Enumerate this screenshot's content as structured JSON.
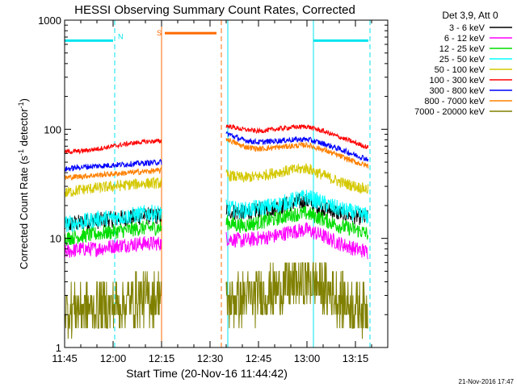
{
  "chart_data": {
    "type": "line",
    "title": "HESSI Observing Summary Count Rates, Corrected",
    "xlabel": "Start Time (20-Nov-16 11:44:42)",
    "ylabel_main": "Corrected Count Rate (s",
    "ylabel_sup1": "-1",
    "ylabel_mid": " detector",
    "ylabel_sup2": "-1",
    "ylabel_end": ")",
    "y_scale": "log",
    "xlim_minutes": [
      0,
      100
    ],
    "ylim": [
      1,
      1000
    ],
    "x_ticks": [
      {
        "label": "11:45",
        "minute": 0
      },
      {
        "label": "12:00",
        "minute": 15
      },
      {
        "label": "12:15",
        "minute": 30
      },
      {
        "label": "12:30",
        "minute": 45
      },
      {
        "label": "12:45",
        "minute": 60
      },
      {
        "label": "13:00",
        "minute": 75
      },
      {
        "label": "13:15",
        "minute": 90
      }
    ],
    "y_ticks": [
      {
        "label": "1",
        "value": 1
      },
      {
        "label": "10",
        "value": 10
      },
      {
        "label": "100",
        "value": 100
      },
      {
        "label": "1000",
        "value": 1000
      }
    ],
    "legend_title": "Det 3,9, Att 0",
    "legend_position": "right",
    "data_gap_minutes": [
      30,
      50
    ],
    "series": [
      {
        "name": "3 - 6 keV",
        "color": "#000000",
        "points": [
          [
            0,
            13
          ],
          [
            5,
            14
          ],
          [
            10,
            14.5
          ],
          [
            15,
            15
          ],
          [
            20,
            15.5
          ],
          [
            25,
            16
          ],
          [
            30,
            16
          ],
          [
            50,
            18
          ],
          [
            55,
            17
          ],
          [
            60,
            18
          ],
          [
            65,
            19
          ],
          [
            70,
            21
          ],
          [
            75,
            22
          ],
          [
            80,
            19
          ],
          [
            85,
            17
          ],
          [
            90,
            16
          ],
          [
            94,
            15.5
          ]
        ]
      },
      {
        "name": "6 - 12 keV",
        "color": "#ff00ff",
        "points": [
          [
            0,
            7.5
          ],
          [
            5,
            8
          ],
          [
            10,
            8
          ],
          [
            15,
            8.5
          ],
          [
            20,
            8.8
          ],
          [
            25,
            9
          ],
          [
            30,
            9
          ],
          [
            50,
            10
          ],
          [
            55,
            9.5
          ],
          [
            60,
            10
          ],
          [
            65,
            10.5
          ],
          [
            70,
            11.5
          ],
          [
            75,
            12
          ],
          [
            80,
            10.5
          ],
          [
            85,
            9
          ],
          [
            90,
            8
          ],
          [
            94,
            7.5
          ]
        ]
      },
      {
        "name": "12 - 25 keV",
        "color": "#00dd00",
        "points": [
          [
            0,
            10
          ],
          [
            5,
            10.5
          ],
          [
            10,
            11
          ],
          [
            15,
            11.5
          ],
          [
            20,
            12
          ],
          [
            25,
            12.5
          ],
          [
            30,
            12.5
          ],
          [
            50,
            14
          ],
          [
            55,
            13
          ],
          [
            60,
            14
          ],
          [
            65,
            15
          ],
          [
            70,
            16.5
          ],
          [
            75,
            17
          ],
          [
            80,
            15
          ],
          [
            85,
            13
          ],
          [
            90,
            12
          ],
          [
            94,
            11
          ]
        ]
      },
      {
        "name": "25 - 50 keV",
        "color": "#00ffff",
        "points": [
          [
            0,
            13.5
          ],
          [
            5,
            14
          ],
          [
            10,
            15
          ],
          [
            15,
            15.5
          ],
          [
            20,
            16
          ],
          [
            25,
            17
          ],
          [
            30,
            17
          ],
          [
            50,
            19
          ],
          [
            55,
            18
          ],
          [
            60,
            19
          ],
          [
            65,
            20
          ],
          [
            70,
            22
          ],
          [
            75,
            24
          ],
          [
            80,
            21
          ],
          [
            85,
            18.5
          ],
          [
            90,
            17
          ],
          [
            94,
            16
          ]
        ]
      },
      {
        "name": "50 - 100 keV",
        "color": "#d4c800",
        "points": [
          [
            0,
            26
          ],
          [
            5,
            28
          ],
          [
            10,
            29
          ],
          [
            15,
            30
          ],
          [
            20,
            31
          ],
          [
            25,
            32
          ],
          [
            30,
            32
          ],
          [
            50,
            38
          ],
          [
            55,
            36
          ],
          [
            60,
            37
          ],
          [
            65,
            40
          ],
          [
            70,
            42
          ],
          [
            75,
            44
          ],
          [
            80,
            38
          ],
          [
            85,
            33
          ],
          [
            90,
            30
          ],
          [
            94,
            28
          ]
        ]
      },
      {
        "name": "100 - 300 keV",
        "color": "#ff0000",
        "points": [
          [
            0,
            62
          ],
          [
            5,
            63
          ],
          [
            10,
            66
          ],
          [
            15,
            70
          ],
          [
            20,
            74
          ],
          [
            25,
            77
          ],
          [
            30,
            78
          ],
          [
            50,
            108
          ],
          [
            55,
            100
          ],
          [
            60,
            96
          ],
          [
            65,
            100
          ],
          [
            70,
            104
          ],
          [
            75,
            106
          ],
          [
            80,
            96
          ],
          [
            85,
            85
          ],
          [
            90,
            75
          ],
          [
            94,
            68
          ]
        ]
      },
      {
        "name": "300 - 800 keV",
        "color": "#0000ff",
        "points": [
          [
            0,
            43
          ],
          [
            5,
            45
          ],
          [
            10,
            46
          ],
          [
            15,
            47
          ],
          [
            20,
            48
          ],
          [
            25,
            49
          ],
          [
            30,
            50
          ],
          [
            50,
            92
          ],
          [
            55,
            80
          ],
          [
            60,
            76
          ],
          [
            65,
            78
          ],
          [
            70,
            80
          ],
          [
            75,
            81
          ],
          [
            80,
            74
          ],
          [
            85,
            66
          ],
          [
            90,
            58
          ],
          [
            94,
            53
          ]
        ]
      },
      {
        "name": "800 - 7000 keV",
        "color": "#ff8000",
        "points": [
          [
            0,
            36
          ],
          [
            5,
            37
          ],
          [
            10,
            38
          ],
          [
            15,
            39
          ],
          [
            20,
            40
          ],
          [
            25,
            41
          ],
          [
            30,
            42
          ],
          [
            50,
            82
          ],
          [
            55,
            70
          ],
          [
            60,
            66
          ],
          [
            65,
            68
          ],
          [
            70,
            70
          ],
          [
            75,
            72
          ],
          [
            80,
            65
          ],
          [
            85,
            57
          ],
          [
            90,
            50
          ],
          [
            94,
            46
          ]
        ]
      },
      {
        "name": "7000 - 20000 keV",
        "color": "#808000",
        "points": [
          [
            0,
            2.2
          ],
          [
            5,
            2.3
          ],
          [
            10,
            2.3
          ],
          [
            15,
            2.4
          ],
          [
            20,
            2.6
          ],
          [
            25,
            2.8
          ],
          [
            30,
            3
          ],
          [
            50,
            2.6
          ],
          [
            55,
            2.8
          ],
          [
            60,
            3
          ],
          [
            65,
            3.3
          ],
          [
            70,
            3.8
          ],
          [
            75,
            4.2
          ],
          [
            80,
            3.5
          ],
          [
            85,
            2.8
          ],
          [
            90,
            2.4
          ],
          [
            94,
            2.2
          ]
        ]
      }
    ],
    "flag_bars": [
      {
        "label": "N",
        "color": "#00e5ee",
        "segments": [
          [
            0,
            15
          ],
          [
            77,
            94
          ]
        ],
        "value": 650
      },
      {
        "label": "S",
        "color": "#ff6a00",
        "segments": [
          [
            31,
            47
          ]
        ],
        "value": 760
      }
    ],
    "vertical_markers": [
      {
        "minute": 0,
        "color": "#00e5ee",
        "style": "solid"
      },
      {
        "minute": 15.5,
        "color": "#00e5ee",
        "style": "dashed"
      },
      {
        "minute": 30,
        "color": "#ff6a00",
        "style": "solid"
      },
      {
        "minute": 48.5,
        "color": "#ff6a00",
        "style": "dashed"
      },
      {
        "minute": 50.5,
        "color": "#00e5ee",
        "style": "solid"
      },
      {
        "minute": 77,
        "color": "#00e5ee",
        "style": "solid"
      },
      {
        "minute": 94.5,
        "color": "#00e5ee",
        "style": "dashed"
      }
    ]
  },
  "footer": {
    "timestamp": "21-Nov-2016 17:47"
  }
}
